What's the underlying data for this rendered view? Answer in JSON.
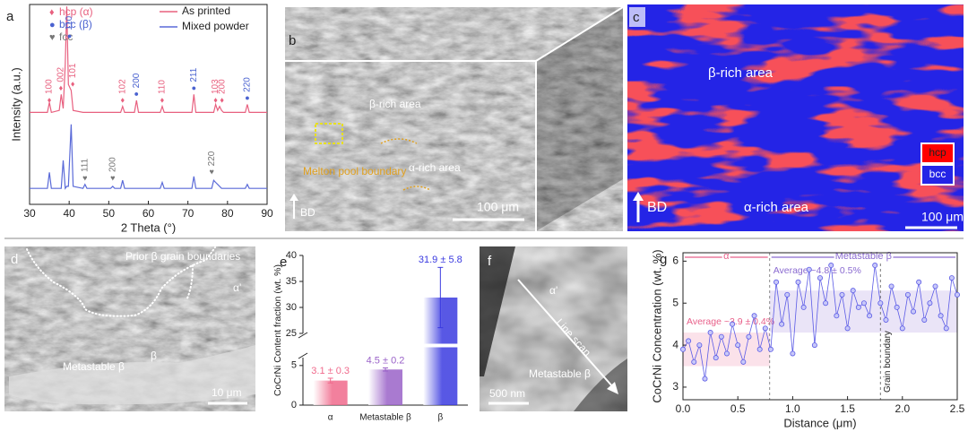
{
  "chart_data": [
    {
      "type": "line",
      "panel": "a",
      "xlabel": "2 Theta (°)",
      "ylabel": "Intensity (a.u.)",
      "xlim": [
        30,
        90
      ],
      "xticks": [
        30,
        40,
        50,
        60,
        70,
        80,
        90
      ],
      "ylim": [
        0,
        100
      ],
      "x": [
        30,
        34.5,
        35,
        35.5,
        37.5,
        38,
        38.5,
        39,
        39.4,
        39.8,
        40.5,
        41,
        43.5,
        44,
        44.5,
        50.5,
        51,
        51.5,
        53,
        53.5,
        54,
        56.5,
        57,
        57.5,
        63,
        63.5,
        64,
        71,
        71.5,
        72,
        76,
        76.5,
        77,
        77.5,
        78,
        78.5,
        79,
        84.5,
        85,
        85.5,
        90
      ],
      "series": [
        {
          "name": "As printed",
          "color": "#e8607f",
          "values": [
            46,
            46,
            51,
            46,
            47,
            55,
            48,
            70,
            99,
            60,
            57,
            47,
            46,
            46,
            46,
            46,
            46,
            46,
            46,
            49,
            46,
            46,
            52,
            46,
            46,
            49,
            46,
            46,
            55,
            46,
            46,
            46,
            50,
            47,
            49,
            47,
            46,
            46,
            50,
            46,
            46
          ]
        },
        {
          "name": "Mixed powder",
          "color": "#5a6ad8",
          "values": [
            8,
            8,
            16,
            8,
            8,
            8,
            22,
            8,
            9,
            9,
            40,
            9,
            8,
            10,
            8,
            8,
            9,
            8,
            8,
            12,
            8,
            8,
            8,
            8,
            8,
            11,
            8,
            8,
            14,
            8,
            8,
            12,
            11,
            10,
            9,
            8,
            8,
            8,
            10,
            8,
            8
          ]
        }
      ],
      "marker_legend": [
        {
          "symbol": "♦",
          "name": "hcp (α)",
          "color": "#e8607f"
        },
        {
          "symbol": "●",
          "name": "bcc (β)",
          "color": "#4a62d0"
        },
        {
          "symbol": "♥",
          "name": "fcc",
          "color": "#777777"
        }
      ],
      "peak_labels": [
        {
          "text": "100",
          "x": 35,
          "y": 52,
          "phase": 0
        },
        {
          "text": "002",
          "x": 37.9,
          "y": 58,
          "phase": 0
        },
        {
          "text": "110",
          "x": 40.1,
          "y": 84,
          "phase": 1
        },
        {
          "text": "101",
          "x": 40.9,
          "y": 60,
          "phase": 0
        },
        {
          "text": "102",
          "x": 53.5,
          "y": 52,
          "phase": 0
        },
        {
          "text": "200",
          "x": 57,
          "y": 55,
          "phase": 1
        },
        {
          "text": "110",
          "x": 63.5,
          "y": 52,
          "phase": 0
        },
        {
          "text": "211",
          "x": 71.5,
          "y": 58,
          "phase": 1
        },
        {
          "text": "103",
          "x": 77,
          "y": 52,
          "phase": 0
        },
        {
          "text": "200",
          "x": 78.6,
          "y": 52,
          "phase": 0
        },
        {
          "text": "220",
          "x": 85,
          "y": 53,
          "phase": 1
        },
        {
          "text": "111",
          "x": 44,
          "y": 13,
          "phase": 2
        },
        {
          "text": "200",
          "x": 51,
          "y": 13,
          "phase": 2
        },
        {
          "text": "220",
          "x": 76,
          "y": 16,
          "phase": 2
        }
      ]
    },
    {
      "type": "bar",
      "panel": "e",
      "ylabel": "CoCrNi Content fraction (wt. %)",
      "categories": [
        "α",
        "Metastable β",
        "β"
      ],
      "values": [
        3.1,
        4.5,
        31.9
      ],
      "errors": [
        0.3,
        0.2,
        5.8
      ],
      "value_labels": [
        "3.1 ± 0.3",
        "4.5 ± 0.2",
        "31.9 ± 5.8"
      ],
      "colors": [
        "#f06a8c",
        "#9a62c8",
        "#3a3ae0"
      ],
      "ylim": [
        0,
        40
      ],
      "axis_break": [
        6,
        25
      ],
      "yticks": [
        0,
        5,
        25,
        30,
        35,
        40
      ]
    },
    {
      "type": "line",
      "panel": "g",
      "xlabel": "Distance (μm)",
      "ylabel": "CoCrNi Concentration (wt. %)",
      "markers": true,
      "xlim": [
        0,
        2.5
      ],
      "xticks": [
        {
          "value": 0,
          "label": "0.0"
        },
        0.5,
        {
          "value": 1,
          "label": "1.0"
        },
        1.5,
        {
          "value": 2,
          "label": "2.0"
        },
        2.5
      ],
      "ylim": [
        2.7,
        6.2
      ],
      "yticks": [
        3,
        4,
        5,
        6
      ],
      "x": [
        0,
        0.05,
        0.1,
        0.15,
        0.2,
        0.25,
        0.3,
        0.35,
        0.4,
        0.45,
        0.5,
        0.55,
        0.6,
        0.65,
        0.7,
        0.75,
        0.8,
        0.85,
        0.9,
        0.95,
        1,
        1.05,
        1.1,
        1.15,
        1.2,
        1.25,
        1.3,
        1.35,
        1.4,
        1.45,
        1.5,
        1.55,
        1.6,
        1.65,
        1.7,
        1.75,
        1.8,
        1.85,
        1.9,
        1.95,
        2,
        2.05,
        2.1,
        2.15,
        2.2,
        2.25,
        2.3,
        2.35,
        2.4,
        2.45,
        2.5
      ],
      "series": [
        {
          "color": "#5b5be6",
          "values": [
            3.9,
            4.1,
            3.6,
            4.0,
            3.2,
            4.3,
            3.7,
            4.2,
            3.8,
            4.5,
            4.0,
            3.6,
            4.2,
            4.7,
            3.9,
            4.4,
            3.9,
            5.5,
            4.5,
            5.2,
            3.8,
            5.5,
            4.9,
            5.8,
            4.0,
            5.6,
            5.0,
            5.9,
            4.7,
            5.2,
            4.4,
            5.3,
            4.9,
            5.0,
            4.7,
            5.9,
            5.0,
            4.6,
            5.4,
            4.9,
            4.4,
            5.2,
            4.8,
            5.5,
            4.6,
            5.0,
            5.4,
            4.7,
            4.4,
            5.6,
            5.2
          ]
        }
      ],
      "regions": [
        {
          "label": "α",
          "x": [
            0,
            0.79
          ],
          "band": [
            3.5,
            4.3
          ],
          "color": "#e8608a",
          "average": "Average ~3.9 ± 0.4%"
        },
        {
          "label": "Metastable β",
          "x": [
            0.79,
            2.5
          ],
          "band": [
            4.3,
            5.3
          ],
          "color": "#8a6ad0",
          "average": "Average ~4.8 ± 0.5%"
        }
      ],
      "boundary": {
        "x": 1.8,
        "label": "Grain boundary"
      }
    }
  ],
  "panels": {
    "b": {
      "letter": "b",
      "beta_rich": "β-rich area",
      "melt_pool": "Melton pool boundary",
      "alpha_rich": "α-rich area",
      "bd": "BD",
      "scale": "100 μm"
    },
    "c": {
      "letter": "c",
      "beta_rich": "β-rich area",
      "alpha_rich": "α-rich area",
      "hcp": "hcp",
      "bcc": "bcc",
      "bd": "BD",
      "scale": "100 μm"
    },
    "d": {
      "letter": "d",
      "boundaries": "Prior β grain boundaries",
      "alpha_prime": "α'",
      "metastable": "Metastable β",
      "beta": "β",
      "scale": "10 μm"
    },
    "f": {
      "letter": "f",
      "alpha_prime": "α'",
      "line_scan": "Line scan",
      "metastable": "Metastable β",
      "scale": "500 nm"
    }
  }
}
